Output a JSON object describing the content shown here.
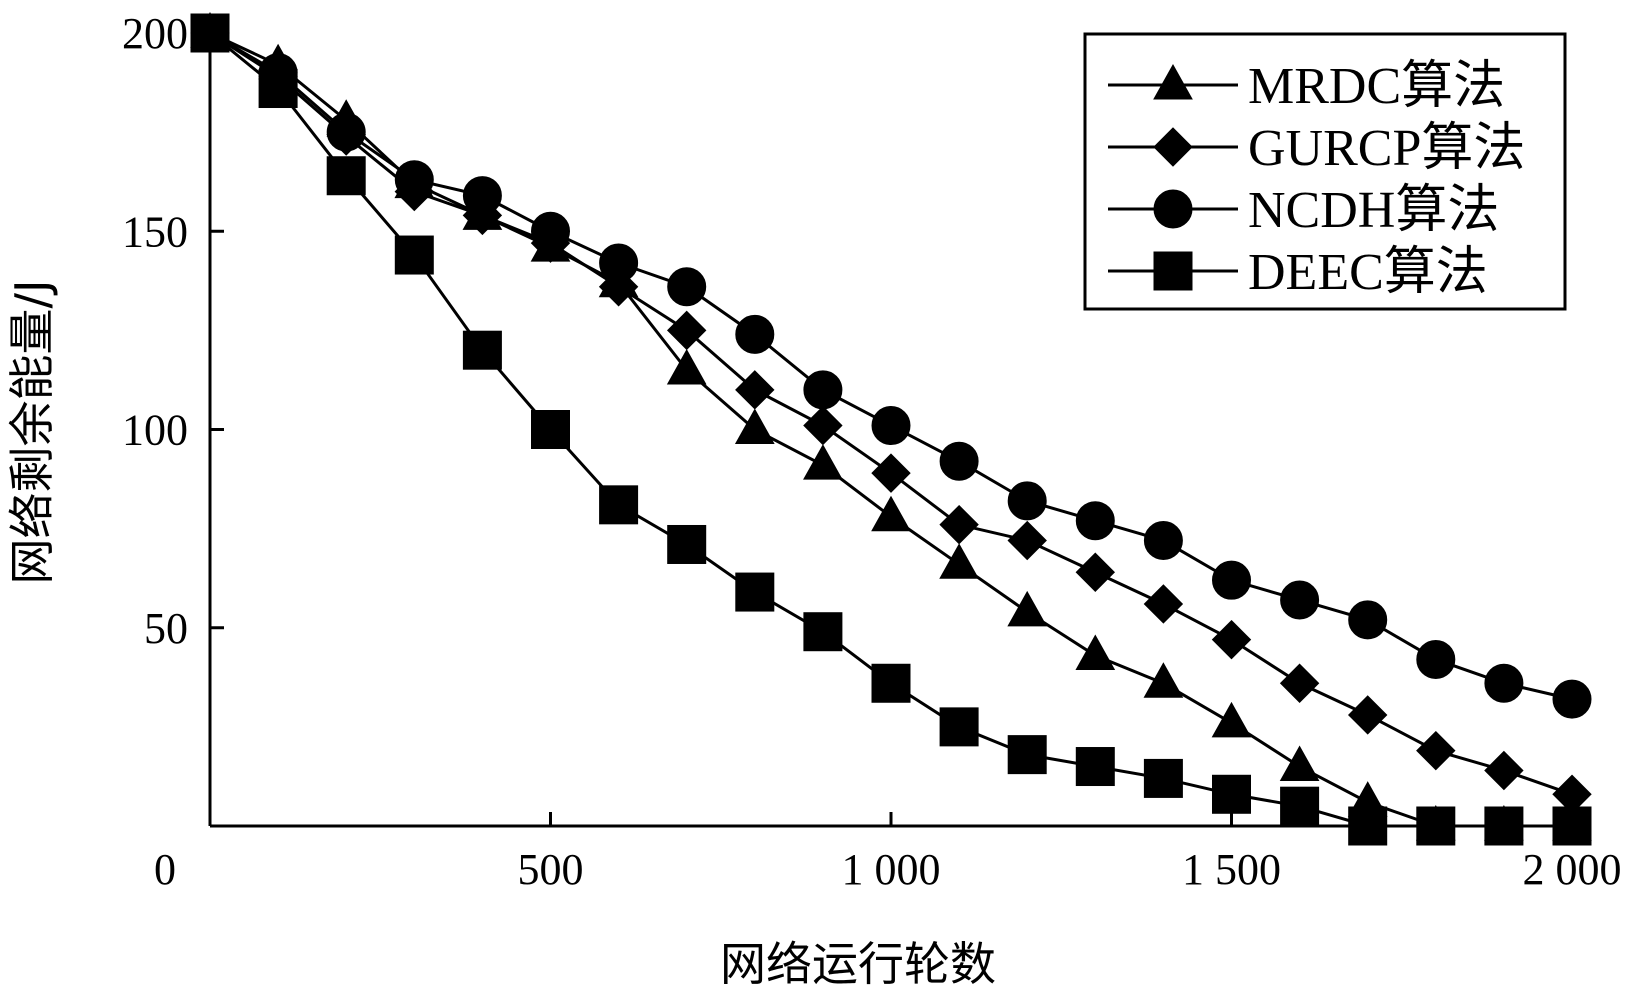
{
  "chart_data": {
    "type": "line",
    "xlabel": "网络运行轮数",
    "ylabel": "网络剩余能量/J",
    "xlim": [
      0,
      2000
    ],
    "ylim": [
      0,
      200
    ],
    "x_ticks": [
      0,
      500,
      1000,
      1500,
      2000
    ],
    "x_tick_labels": [
      "0",
      "500",
      "1 000",
      "1 500",
      "2 000"
    ],
    "y_ticks": [
      50,
      100,
      150,
      200
    ],
    "y_tick_labels": [
      "50",
      "100",
      "150",
      "200"
    ],
    "grid": false,
    "legend_position": "top-right",
    "x": [
      0,
      100,
      200,
      300,
      400,
      500,
      600,
      700,
      800,
      900,
      1000,
      1100,
      1200,
      1300,
      1400,
      1500,
      1600,
      1700,
      1800,
      1900,
      2000
    ],
    "series": [
      {
        "name": "MRDC算法",
        "marker": "triangle",
        "values": [
          200,
          192,
          178,
          162,
          154,
          146,
          137,
          115,
          100,
          91,
          78,
          66,
          54,
          43,
          36,
          26,
          15,
          6,
          0,
          0,
          0
        ]
      },
      {
        "name": "GURCP算法",
        "marker": "diamond",
        "values": [
          200,
          189,
          174,
          160,
          154,
          147,
          136,
          125,
          110,
          101,
          89,
          76,
          72,
          64,
          56,
          47,
          36,
          28,
          19,
          14,
          8
        ]
      },
      {
        "name": "NCDH算法",
        "marker": "circle",
        "values": [
          200,
          190,
          175,
          163,
          159,
          150,
          142,
          136,
          124,
          110,
          101,
          92,
          82,
          77,
          72,
          62,
          57,
          52,
          42,
          36,
          32
        ]
      },
      {
        "name": "DEEC算法",
        "marker": "square",
        "values": [
          200,
          186,
          164,
          144,
          120,
          100,
          81,
          71,
          59,
          49,
          36,
          25,
          18,
          15,
          12,
          8,
          5,
          0,
          0,
          0,
          0
        ]
      }
    ]
  }
}
